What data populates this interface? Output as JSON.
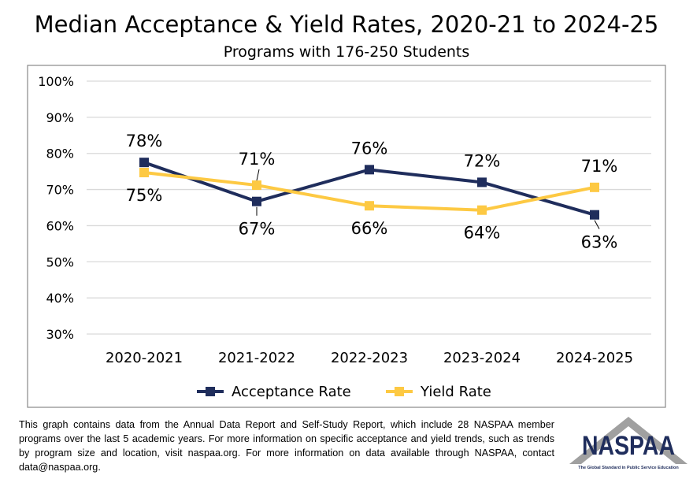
{
  "title": "Median Acceptance & Yield Rates, 2020-21 to 2024-25",
  "subtitle": "Programs with 176-250 Students",
  "footnote": "This graph contains data from the Annual Data Report and Self-Study Report, which include 28 NASPAA member programs over the last 5 academic years. For more information on specific acceptance and yield trends, such as trends by program size and location, visit naspaa.org. For more information on data available through NASPAA, contact data@naspaa.org.",
  "logo": {
    "text": "NASPAA",
    "tagline": "The Global Standard in Public Service Education"
  },
  "chart_data": {
    "type": "line",
    "categories": [
      "2020-2021",
      "2021-2022",
      "2022-2023",
      "2023-2024",
      "2024-2025"
    ],
    "ylim": [
      30,
      100
    ],
    "yticks": [
      "30%",
      "40%",
      "50%",
      "60%",
      "70%",
      "80%",
      "90%",
      "100%"
    ],
    "grid": true,
    "legend": "bottom",
    "series": [
      {
        "name": "Acceptance Rate",
        "color": "#1f2d5c",
        "values": [
          77.5,
          66.7,
          75.5,
          72.0,
          63.0
        ],
        "labels": [
          "78%",
          "67%",
          "76%",
          "72%",
          "63%"
        ]
      },
      {
        "name": "Yield Rate",
        "color": "#fdc943",
        "values": [
          74.7,
          71.2,
          65.5,
          64.3,
          70.6
        ],
        "labels": [
          "75%",
          "71%",
          "66%",
          "64%",
          "71%"
        ]
      }
    ]
  }
}
